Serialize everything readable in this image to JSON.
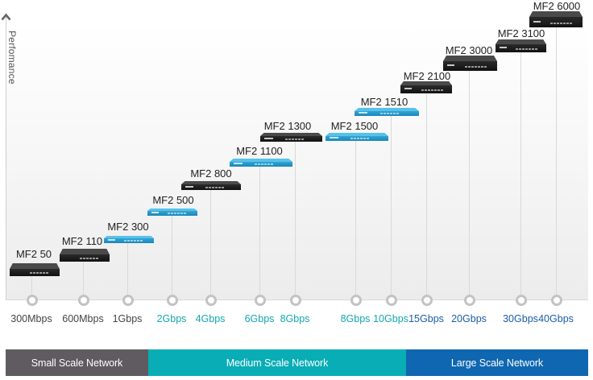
{
  "axis": {
    "y_label": "Perfomance",
    "y_arrow_icon": "chevron-up-icon"
  },
  "colors": {
    "small": "#5f5b60",
    "medium": "#09adb5",
    "large": "#1067b1",
    "tick_small": "#444444",
    "tick_medium": "#14a7ae",
    "tick_large": "#1a5ea6",
    "device_dark": "#2c2c2c",
    "device_blue": "#2aa0d3"
  },
  "throughput_ticks": [
    {
      "label": "300Mbps",
      "tier": "small"
    },
    {
      "label": "600Mbps",
      "tier": "small"
    },
    {
      "label": "1Gbps",
      "tier": "small"
    },
    {
      "label": "2Gbps",
      "tier": "medium"
    },
    {
      "label": "4Gbps",
      "tier": "medium"
    },
    {
      "label": "6Gbps",
      "tier": "medium"
    },
    {
      "label": "8Gbps",
      "tier": "medium"
    },
    {
      "label": "8Gbps",
      "tier": "medium"
    },
    {
      "label": "10Gbps",
      "tier": "medium"
    },
    {
      "label": "15Gbps",
      "tier": "large"
    },
    {
      "label": "20Gbps",
      "tier": "large"
    },
    {
      "label": "30Gbps",
      "tier": "large"
    },
    {
      "label": "40Gbps",
      "tier": "large"
    }
  ],
  "devices": [
    {
      "name": "MF2 50",
      "throughput": "300Mbps",
      "style": "dark-desktop"
    },
    {
      "name": "MF2 110",
      "throughput": "600Mbps",
      "style": "dark-desktop"
    },
    {
      "name": "MF2 300",
      "throughput": "1Gbps",
      "style": "blue-1u"
    },
    {
      "name": "MF2 500",
      "throughput": "2Gbps",
      "style": "blue-1u"
    },
    {
      "name": "MF2 800",
      "throughput": "4Gbps",
      "style": "dark-1u"
    },
    {
      "name": "MF2 1100",
      "throughput": "6Gbps",
      "style": "blue-1u"
    },
    {
      "name": "MF2 1300",
      "throughput": "8Gbps",
      "style": "dark-1u"
    },
    {
      "name": "MF2 1500",
      "throughput": "8Gbps",
      "style": "blue-1u"
    },
    {
      "name": "MF2 1510",
      "throughput": "10Gbps",
      "style": "blue-1u"
    },
    {
      "name": "MF2 2100",
      "throughput": "15Gbps",
      "style": "dark-2u"
    },
    {
      "name": "MF2 3000",
      "throughput": "20Gbps",
      "style": "dark-2u"
    },
    {
      "name": "MF2 3100",
      "throughput": "30Gbps",
      "style": "dark-2u"
    },
    {
      "name": "MF2 6000",
      "throughput": "40Gbps",
      "style": "dark-2u"
    }
  ],
  "bands": [
    {
      "label": "Small Scale Network",
      "tier": "small"
    },
    {
      "label": "Medium Scale Network",
      "tier": "medium"
    },
    {
      "label": "Large Scale Network",
      "tier": "large"
    }
  ]
}
